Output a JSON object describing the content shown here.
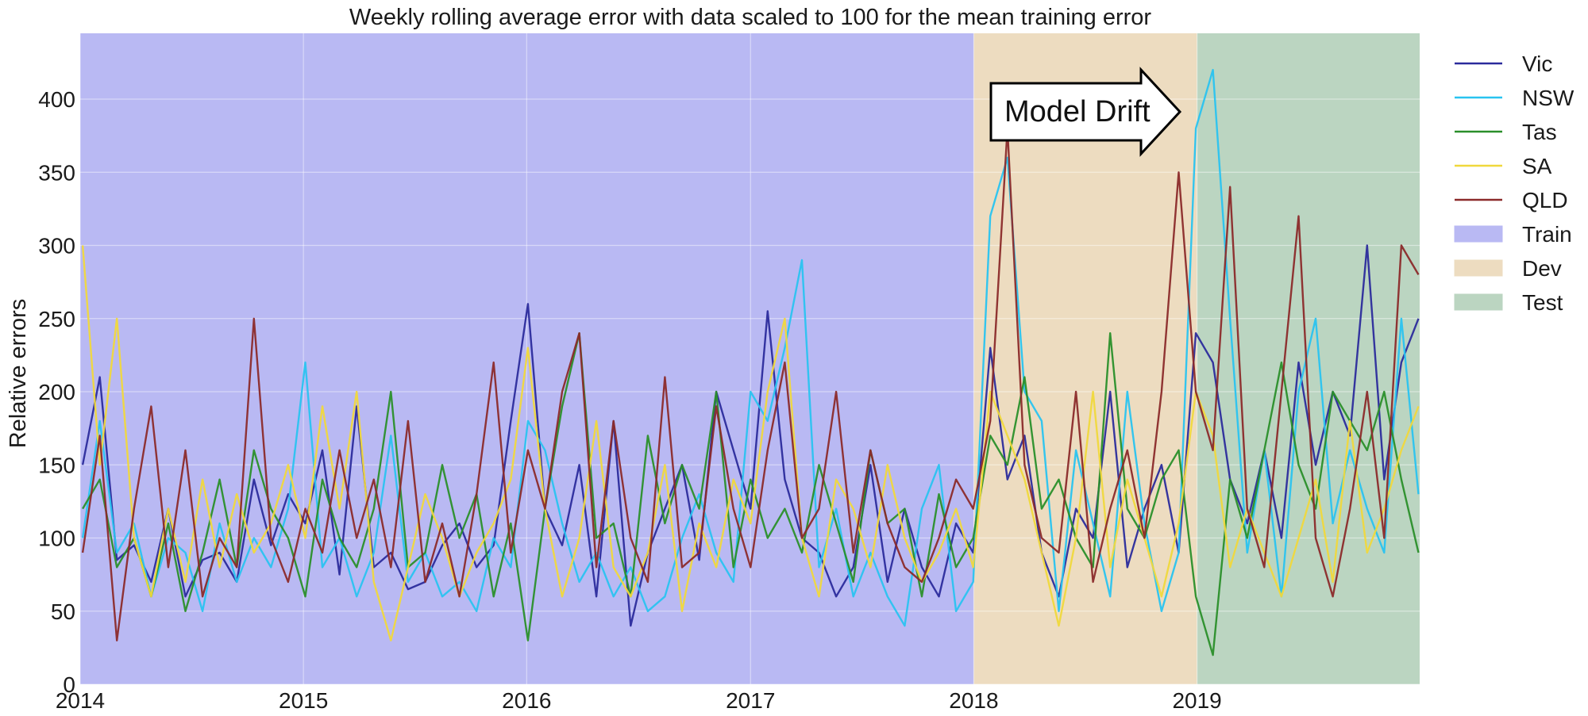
{
  "chart_data": {
    "type": "line",
    "title": "Weekly rolling average error with data scaled to 100 for the mean training error",
    "xlabel": "",
    "ylabel": "Relative errors",
    "xlim": [
      "2014-01-01",
      "2019-12-31"
    ],
    "ylim": [
      0,
      445
    ],
    "x_ticks": [
      "2014",
      "2015",
      "2016",
      "2017",
      "2018",
      "2019"
    ],
    "y_ticks": [
      0,
      50,
      100,
      150,
      200,
      250,
      300,
      350,
      400
    ],
    "grid": true,
    "legend_position": "outside-right",
    "regions": [
      {
        "name": "Train",
        "start": "2014-01-01",
        "end": "2018-01-01",
        "color": "#b9b9f3"
      },
      {
        "name": "Dev",
        "start": "2018-01-01",
        "end": "2019-01-01",
        "color": "#eddcc0"
      },
      {
        "name": "Test",
        "start": "2019-01-01",
        "end": "2019-12-31",
        "color": "#bbd5c1"
      }
    ],
    "annotation": {
      "text": "Model Drift",
      "shape": "right-arrow",
      "date": "2018-06-01",
      "value": 390
    },
    "x": [
      "2014-01-05",
      "2014-02-02",
      "2014-03-02",
      "2014-03-30",
      "2014-04-27",
      "2014-05-25",
      "2014-06-22",
      "2014-07-20",
      "2014-08-17",
      "2014-09-14",
      "2014-10-12",
      "2014-11-09",
      "2014-12-07",
      "2015-01-04",
      "2015-02-01",
      "2015-03-01",
      "2015-03-29",
      "2015-04-26",
      "2015-05-24",
      "2015-06-21",
      "2015-07-19",
      "2015-08-16",
      "2015-09-13",
      "2015-10-11",
      "2015-11-08",
      "2015-12-06",
      "2016-01-03",
      "2016-01-31",
      "2016-02-28",
      "2016-03-27",
      "2016-04-24",
      "2016-05-22",
      "2016-06-19",
      "2016-07-17",
      "2016-08-14",
      "2016-09-11",
      "2016-10-09",
      "2016-11-06",
      "2016-12-04",
      "2017-01-01",
      "2017-01-29",
      "2017-02-26",
      "2017-03-26",
      "2017-04-23",
      "2017-05-21",
      "2017-06-18",
      "2017-07-16",
      "2017-08-13",
      "2017-09-10",
      "2017-10-08",
      "2017-11-05",
      "2017-12-03",
      "2017-12-31",
      "2018-01-28",
      "2018-02-25",
      "2018-03-25",
      "2018-04-22",
      "2018-05-20",
      "2018-06-17",
      "2018-07-15",
      "2018-08-12",
      "2018-09-09",
      "2018-10-07",
      "2018-11-04",
      "2018-12-02",
      "2018-12-30",
      "2019-01-27",
      "2019-02-24",
      "2019-03-24",
      "2019-04-21",
      "2019-05-19",
      "2019-06-16",
      "2019-07-14",
      "2019-08-11",
      "2019-09-08",
      "2019-10-06",
      "2019-11-03",
      "2019-12-01",
      "2019-12-29"
    ],
    "series": [
      {
        "name": "Vic",
        "color": "#2b2b9c",
        "values": [
          150,
          210,
          85,
          95,
          70,
          120,
          60,
          85,
          90,
          70,
          140,
          95,
          130,
          110,
          160,
          75,
          190,
          80,
          90,
          65,
          70,
          95,
          110,
          80,
          95,
          180,
          260,
          120,
          95,
          150,
          60,
          180,
          40,
          90,
          120,
          150,
          85,
          200,
          160,
          120,
          255,
          140,
          100,
          90,
          60,
          80,
          150,
          70,
          120,
          80,
          60,
          110,
          90,
          230,
          140,
          170,
          90,
          60,
          120,
          100,
          200,
          80,
          120,
          150,
          90,
          240,
          220,
          140,
          110,
          160,
          100,
          220,
          150,
          200,
          170,
          300,
          140,
          220,
          250
        ]
      },
      {
        "name": "NSW",
        "color": "#29c3f0",
        "values": [
          100,
          180,
          90,
          110,
          60,
          100,
          90,
          50,
          110,
          70,
          100,
          80,
          120,
          220,
          80,
          100,
          60,
          90,
          170,
          70,
          90,
          60,
          70,
          50,
          100,
          80,
          180,
          160,
          110,
          70,
          90,
          60,
          80,
          50,
          60,
          100,
          130,
          90,
          70,
          200,
          180,
          230,
          290,
          80,
          120,
          60,
          90,
          60,
          40,
          120,
          150,
          50,
          70,
          320,
          360,
          200,
          180,
          50,
          160,
          110,
          60,
          200,
          110,
          50,
          90,
          380,
          420,
          250,
          90,
          160,
          60,
          200,
          250,
          110,
          160,
          120,
          90,
          250,
          130
        ]
      },
      {
        "name": "Tas",
        "color": "#2a8f2a",
        "values": [
          120,
          140,
          80,
          100,
          60,
          110,
          50,
          90,
          140,
          80,
          160,
          120,
          100,
          60,
          140,
          100,
          80,
          120,
          200,
          80,
          90,
          150,
          100,
          130,
          60,
          110,
          30,
          120,
          190,
          240,
          100,
          110,
          60,
          170,
          110,
          150,
          120,
          200,
          80,
          140,
          100,
          120,
          90,
          150,
          110,
          70,
          160,
          110,
          120,
          60,
          130,
          80,
          100,
          170,
          150,
          210,
          120,
          140,
          100,
          80,
          240,
          120,
          100,
          140,
          160,
          60,
          20,
          140,
          100,
          160,
          220,
          150,
          120,
          200,
          180,
          160,
          200,
          140,
          90
        ]
      },
      {
        "name": "SA",
        "color": "#f0d83c",
        "values": [
          300,
          150,
          250,
          100,
          60,
          120,
          70,
          140,
          80,
          130,
          90,
          110,
          150,
          100,
          190,
          120,
          200,
          70,
          30,
          80,
          130,
          100,
          60,
          90,
          110,
          140,
          230,
          120,
          60,
          100,
          180,
          80,
          60,
          90,
          150,
          50,
          110,
          80,
          140,
          110,
          200,
          250,
          100,
          60,
          140,
          120,
          80,
          150,
          100,
          70,
          90,
          120,
          80,
          200,
          170,
          140,
          90,
          40,
          100,
          200,
          80,
          140,
          100,
          60,
          110,
          200,
          170,
          80,
          120,
          90,
          60,
          100,
          140,
          70,
          180,
          90,
          120,
          160,
          190
        ]
      },
      {
        "name": "QLD",
        "color": "#8b2a2a",
        "values": [
          90,
          170,
          30,
          120,
          190,
          80,
          160,
          60,
          100,
          80,
          250,
          100,
          70,
          120,
          90,
          160,
          100,
          140,
          80,
          180,
          70,
          110,
          60,
          130,
          220,
          90,
          160,
          120,
          200,
          240,
          80,
          180,
          100,
          70,
          210,
          80,
          90,
          190,
          120,
          80,
          160,
          220,
          100,
          120,
          200,
          90,
          160,
          110,
          80,
          70,
          100,
          140,
          120,
          180,
          380,
          150,
          100,
          90,
          200,
          70,
          120,
          160,
          100,
          200,
          350,
          200,
          160,
          340,
          120,
          80,
          200,
          320,
          100,
          60,
          120,
          200,
          100,
          300,
          280
        ]
      }
    ]
  }
}
